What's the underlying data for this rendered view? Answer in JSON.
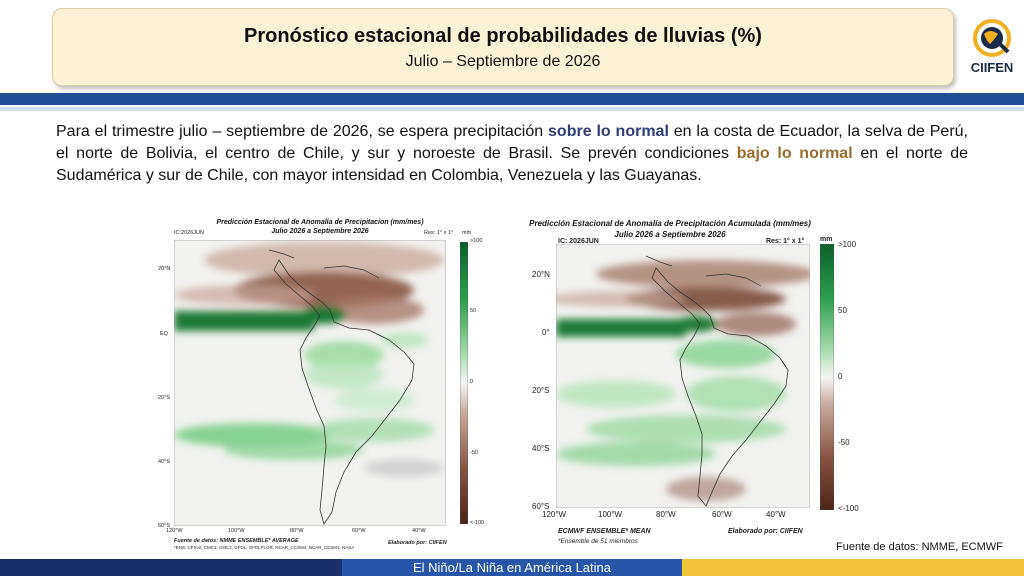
{
  "header": {
    "title": "Pronóstico estacional de probabilidades de lluvias (%)",
    "subtitle": "Julio – Septiembre de 2026",
    "logo_text": "CIIFEN"
  },
  "description": {
    "part1": "Para el trimestre julio – septiembre de 2026, se espera precipitación ",
    "highlight1": "sobre lo normal",
    "part2": " en la costa de Ecuador, la selva de Perú, el norte de Bolivia, el centro de Chile, y sur y noroeste de Brasil. Se prevén condiciones ",
    "highlight2": "bajo lo normal",
    "part3": " en el norte de Sudamérica y sur de Chile, con mayor intensidad en Colombia, Venezuela y las Guayanas."
  },
  "map_left": {
    "title": "Predicción Estacional de Anomalía de Precipitacion (mm/mes)",
    "subtitle": "Julio 2026 a Septiembre 2026",
    "ic": "IC:2026JUN",
    "res": "Res: 1° x 1°",
    "unit": "mm",
    "lat_ticks": [
      "20°N",
      "EQ",
      "20°S",
      "40°S",
      "60°S"
    ],
    "lon_ticks": [
      "120°W",
      "100°W",
      "80°W",
      "60°W",
      "40°W"
    ],
    "colorbar_ticks": [
      ">100",
      "50",
      "0",
      "-50",
      "<-100"
    ],
    "source": "Fuente de datos: NMME ENSEMBLE* AVERAGE",
    "models": "*ENS: CFSv2, CMC1, CMC2, GFDL, GFDLFLOR, NCAR_CCSM4, NCAR_CESM1, NASA",
    "elaborated": "Elaborado por: CIIFEN",
    "version": "® version 4.4.2"
  },
  "map_right": {
    "title": "Predicción Estacional de Anomalía de Precipitación Acumulada (mm/mes)",
    "subtitle": "Julio 2026 a Septiembre 2026",
    "ic": "IC: 2026JUN",
    "res": "Res: 1° x 1°",
    "unit": "mm",
    "lat_ticks": [
      "20°N",
      "0°",
      "20°S",
      "40°S",
      "60°S"
    ],
    "lon_ticks": [
      "120°W",
      "100°W",
      "80°W",
      "60°W",
      "40°W"
    ],
    "colorbar_ticks": [
      ">100",
      "50",
      "0",
      "-50",
      "<-100"
    ],
    "source": "ECMWF ENSEMBLE* MEAN",
    "note": "*Ensemble de 51 miembros",
    "elaborated": "Elaborado por: CIIFEN"
  },
  "credit": "Fuente de datos: NMME, ECMWF",
  "footer": {
    "label": "El Niño/La Niña en América Latina"
  },
  "colors": {
    "wet": "#1f8a3a",
    "dry": "#6b3a2a",
    "blue_band": "#1f4e95",
    "footer_left": "#1a2f6b",
    "footer_mid": "#2756a8",
    "footer_right": "#f2c33a"
  }
}
